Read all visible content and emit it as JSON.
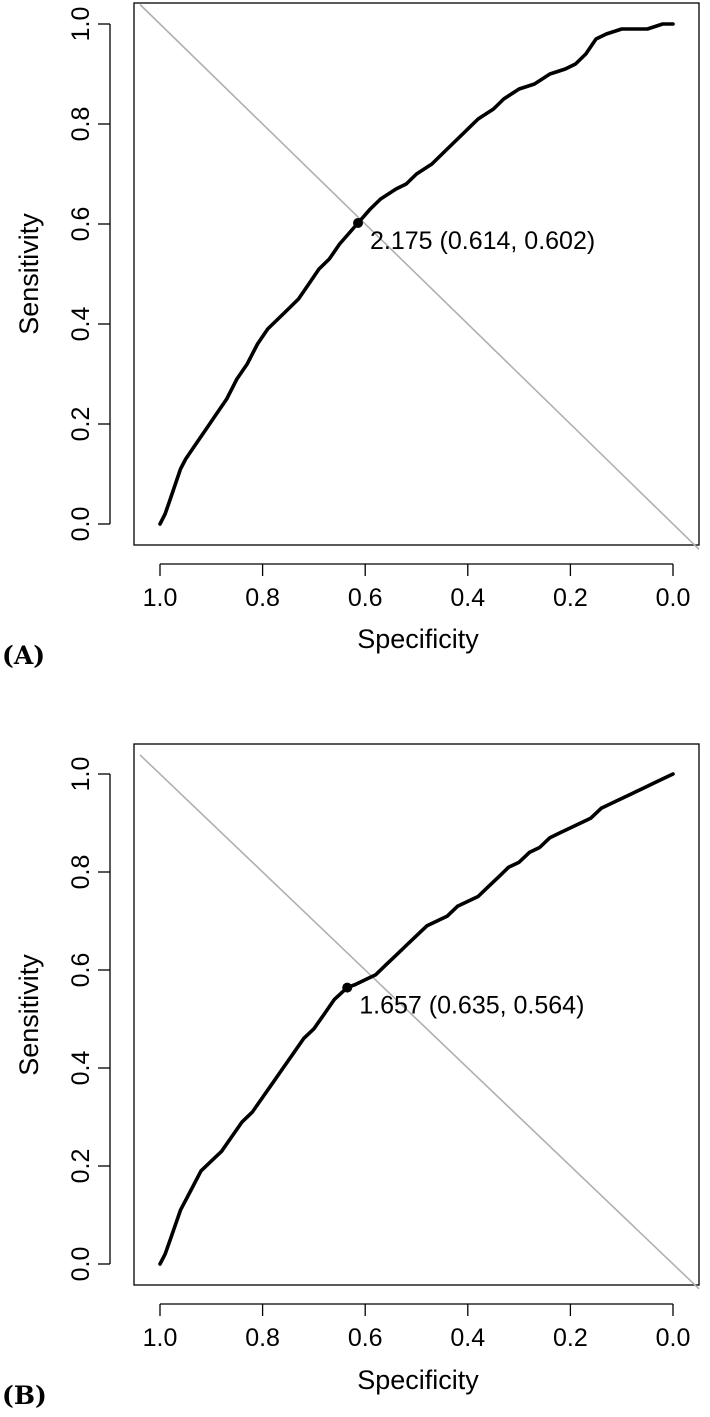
{
  "chart_data": [
    {
      "type": "line",
      "panel_label": "(A)",
      "xlabel": "Specificity",
      "ylabel": "Sensitivity",
      "xlim": [
        1.0,
        0.0
      ],
      "ylim": [
        0.0,
        1.0
      ],
      "x_reversed": true,
      "x_ticks": [
        "1.0",
        "0.8",
        "0.6",
        "0.4",
        "0.2",
        "0.0"
      ],
      "y_ticks": [
        "0.0",
        "0.2",
        "0.4",
        "0.6",
        "0.8",
        "1.0"
      ],
      "grid": false,
      "reference_line": "diagonal",
      "series": [
        {
          "x": [
            1.0,
            0.99,
            0.98,
            0.97,
            0.96,
            0.95,
            0.93,
            0.91,
            0.89,
            0.87,
            0.85,
            0.83,
            0.81,
            0.79,
            0.77,
            0.75,
            0.73,
            0.71,
            0.69,
            0.67,
            0.65,
            0.614,
            0.59,
            0.57,
            0.54,
            0.52,
            0.5,
            0.47,
            0.45,
            0.43,
            0.41,
            0.38,
            0.35,
            0.33,
            0.3,
            0.27,
            0.24,
            0.21,
            0.19,
            0.17,
            0.15,
            0.13,
            0.1,
            0.05,
            0.02,
            0.0
          ],
          "y": [
            0.0,
            0.02,
            0.05,
            0.08,
            0.11,
            0.13,
            0.16,
            0.19,
            0.22,
            0.25,
            0.29,
            0.32,
            0.36,
            0.39,
            0.41,
            0.43,
            0.45,
            0.48,
            0.51,
            0.53,
            0.56,
            0.602,
            0.63,
            0.65,
            0.67,
            0.68,
            0.7,
            0.72,
            0.74,
            0.76,
            0.78,
            0.81,
            0.83,
            0.85,
            0.87,
            0.88,
            0.9,
            0.91,
            0.92,
            0.94,
            0.97,
            0.98,
            0.99,
            0.99,
            1.0,
            1.0
          ]
        }
      ],
      "optimal_point": {
        "x": 0.614,
        "y": 0.602
      },
      "annotation": "2.175 (0.614, 0.602)"
    },
    {
      "type": "line",
      "panel_label": "(B)",
      "xlabel": "Specificity",
      "ylabel": "Sensitivity",
      "xlim": [
        1.0,
        0.0
      ],
      "ylim": [
        0.0,
        1.0
      ],
      "x_reversed": true,
      "x_ticks": [
        "1.0",
        "0.8",
        "0.6",
        "0.4",
        "0.2",
        "0.0"
      ],
      "y_ticks": [
        "0.0",
        "0.2",
        "0.4",
        "0.6",
        "0.8",
        "1.0"
      ],
      "grid": false,
      "reference_line": "diagonal",
      "series": [
        {
          "x": [
            1.0,
            0.99,
            0.98,
            0.97,
            0.96,
            0.94,
            0.92,
            0.9,
            0.88,
            0.86,
            0.84,
            0.82,
            0.8,
            0.78,
            0.76,
            0.74,
            0.72,
            0.7,
            0.68,
            0.66,
            0.635,
            0.62,
            0.6,
            0.58,
            0.56,
            0.54,
            0.52,
            0.5,
            0.48,
            0.46,
            0.44,
            0.42,
            0.4,
            0.38,
            0.36,
            0.34,
            0.32,
            0.3,
            0.28,
            0.26,
            0.24,
            0.22,
            0.2,
            0.18,
            0.16,
            0.14,
            0.12,
            0.1,
            0.08,
            0.06,
            0.04,
            0.02,
            0.0
          ],
          "y": [
            0.0,
            0.02,
            0.05,
            0.08,
            0.11,
            0.15,
            0.19,
            0.21,
            0.23,
            0.26,
            0.29,
            0.31,
            0.34,
            0.37,
            0.4,
            0.43,
            0.46,
            0.48,
            0.51,
            0.54,
            0.564,
            0.57,
            0.58,
            0.59,
            0.61,
            0.63,
            0.65,
            0.67,
            0.69,
            0.7,
            0.71,
            0.73,
            0.74,
            0.75,
            0.77,
            0.79,
            0.81,
            0.82,
            0.84,
            0.85,
            0.87,
            0.88,
            0.89,
            0.9,
            0.91,
            0.93,
            0.94,
            0.95,
            0.96,
            0.97,
            0.98,
            0.99,
            1.0
          ]
        }
      ],
      "optimal_point": {
        "x": 0.635,
        "y": 0.564
      },
      "annotation": "1.657 (0.635, 0.564)"
    }
  ]
}
